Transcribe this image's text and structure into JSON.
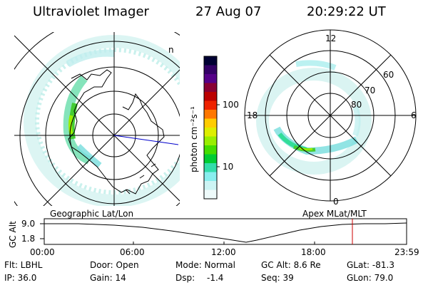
{
  "header": {
    "title": "Ultraviolet Imager",
    "date": "27 Aug 07",
    "time": "20:29:22 UT"
  },
  "left_map": {
    "caption": "Geographic Lat/Lon",
    "corner_mark": "n"
  },
  "colorbar": {
    "label": "photon cm⁻²s⁻¹",
    "ticks": [
      "100",
      "10"
    ],
    "scale": "log",
    "colors": [
      "#000033",
      "#330066",
      "#550088",
      "#880033",
      "#bb0000",
      "#ee2200",
      "#ff7700",
      "#ffcc00",
      "#ddee00",
      "#99ee00",
      "#44dd00",
      "#00cc33",
      "#33ddaa",
      "#88eeee",
      "#ccf4f4",
      "#eefafa"
    ]
  },
  "right_map": {
    "caption": "Apex MLat/MLT",
    "mlt_labels": {
      "top": "12",
      "bottom": "0",
      "left": "18",
      "right": "6"
    },
    "lat_labels": [
      "60",
      "70",
      "80"
    ]
  },
  "altitude_plot": {
    "ylabel": "GC Alt",
    "yticks": [
      "9.0",
      "1.8"
    ],
    "xticks": [
      "00:00",
      "06:00",
      "12:00",
      "18:00",
      "23:59"
    ],
    "cursor_color": "#cc0000"
  },
  "info": {
    "flt": "Flt: LBHL",
    "ip": "IP: 36.0",
    "door": "Door: Open",
    "gain": "Gain: 14",
    "mode": "Mode: Normal",
    "dsp_label": "Dsp:",
    "dsp_value": "-1.4",
    "gcalt": "GC Alt: 8.6 Re",
    "seq": "Seq: 39",
    "glat": "GLat: -81.3",
    "glon": "GLon: 79.0"
  }
}
